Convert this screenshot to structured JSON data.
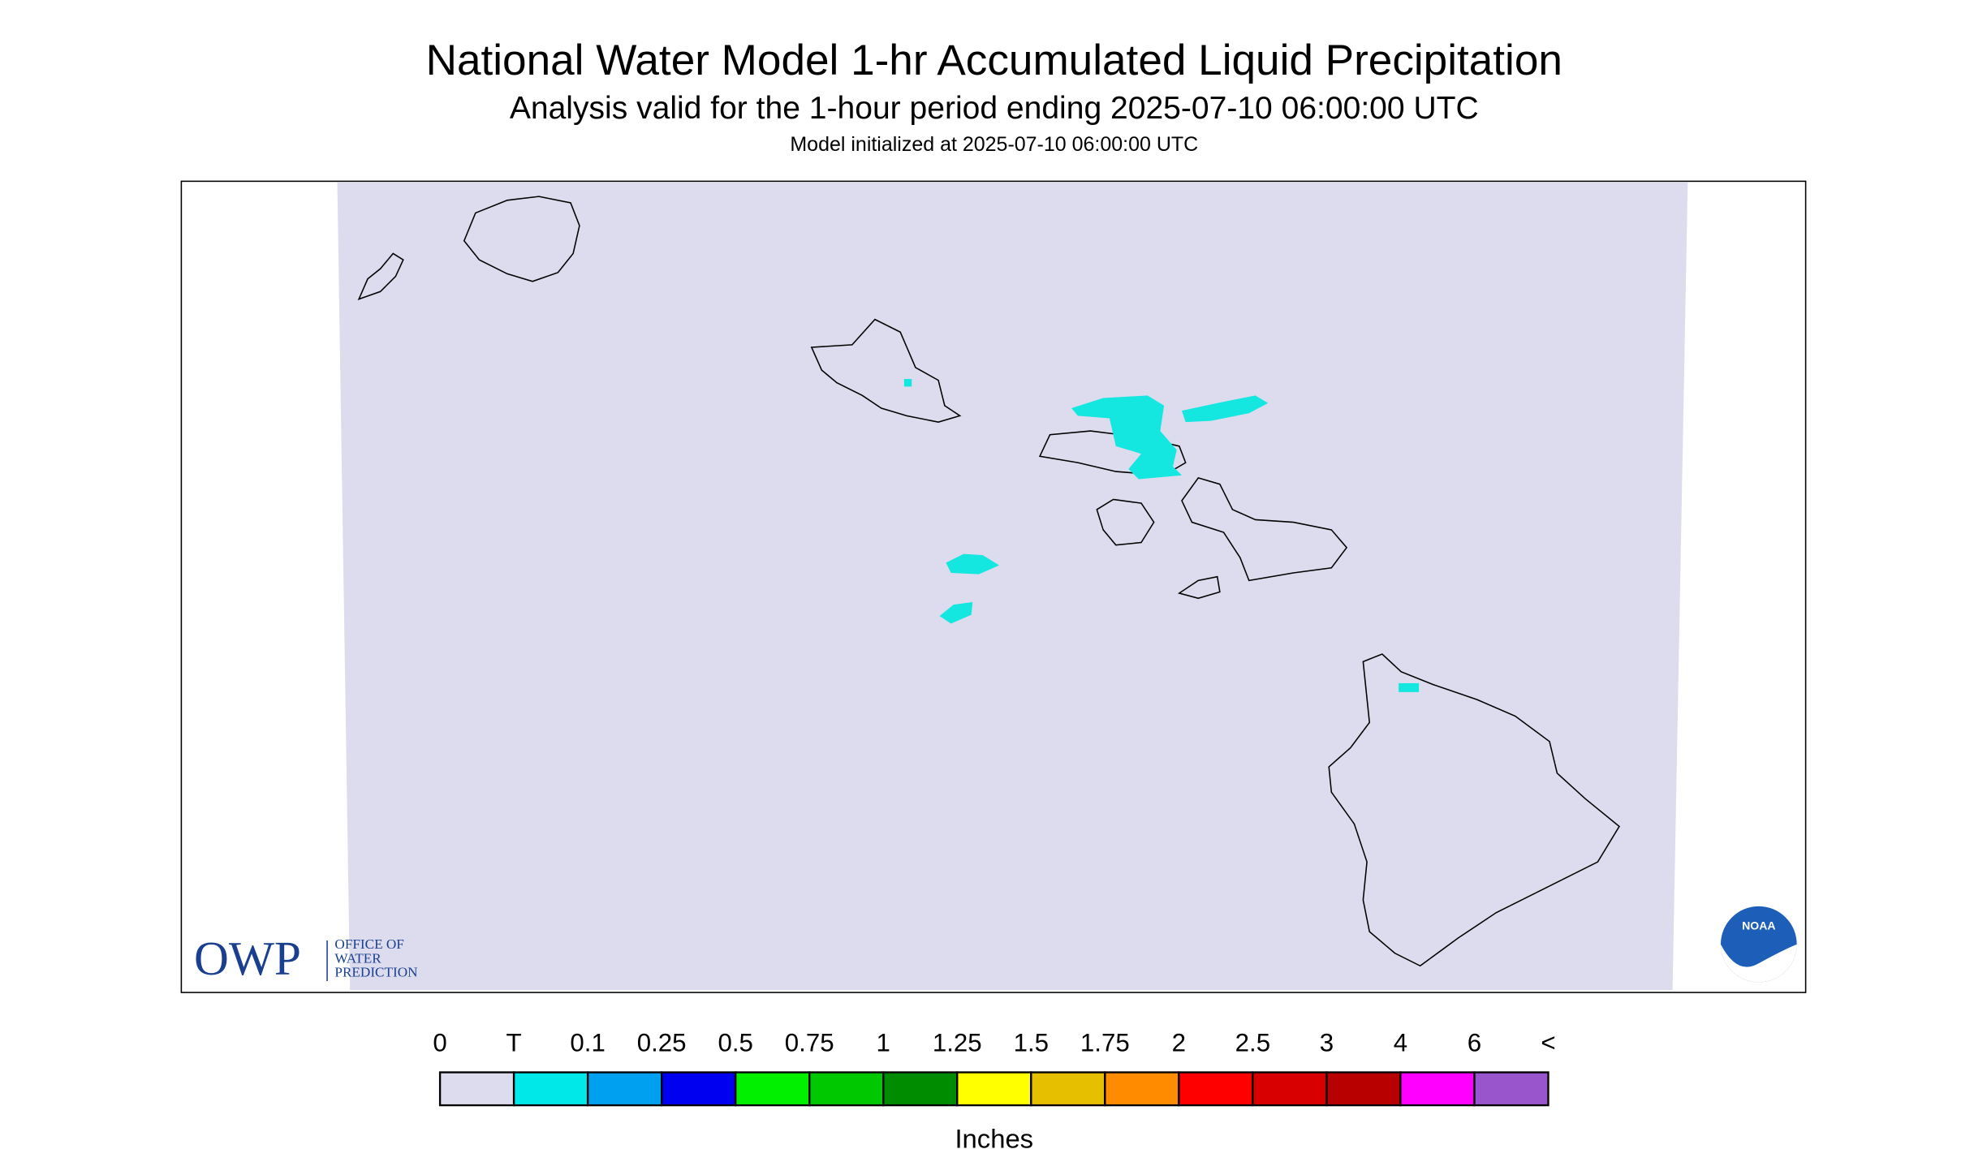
{
  "header": {
    "title": "National Water Model 1-hr Accumulated Liquid Precipitation",
    "subtitle": "Analysis valid for the 1-hour period ending 2025-07-10 06:00:00 UTC",
    "note": "Model initialized at 2025-07-10 06:00:00 UTC"
  },
  "legend": {
    "labels": [
      "0",
      "T",
      "0.1",
      "0.25",
      "0.5",
      "0.75",
      "1",
      "1.25",
      "1.5",
      "1.75",
      "2",
      "2.5",
      "3",
      "4",
      "6",
      "<"
    ],
    "colors": [
      "#dcdcee",
      "#00e8e8",
      "#00a0f0",
      "#0000f0",
      "#00f000",
      "#00c800",
      "#008c00",
      "#ffff00",
      "#e6c000",
      "#ff8c00",
      "#ff0000",
      "#d80000",
      "#b80000",
      "#ff00ff",
      "#9955cc"
    ],
    "unit": "Inches"
  },
  "logos": {
    "owp": "OWP",
    "owp_lines": [
      "OFFICE OF",
      "WATER",
      "PREDICTION"
    ],
    "noaa": "NOAA"
  }
}
